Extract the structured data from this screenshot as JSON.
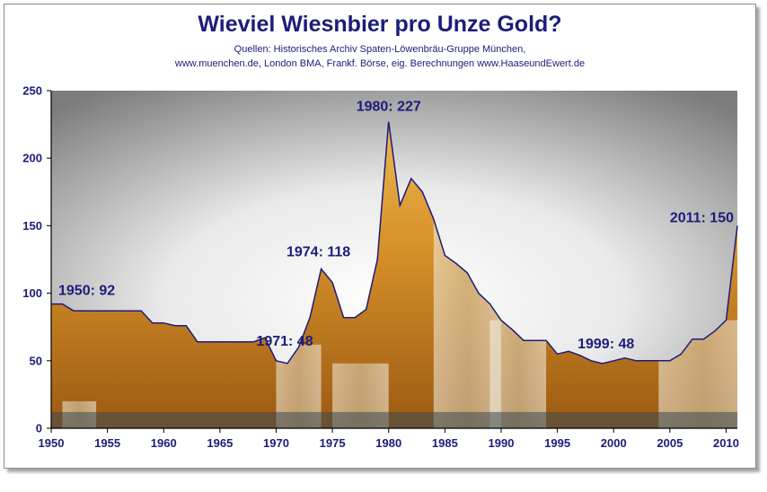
{
  "header": {
    "title": "Wieviel Wiesnbier pro Unze Gold?",
    "source_line1": "Quellen: Historisches Archiv Spaten-Löwenbräu-Gruppe München,",
    "source_line2": "www.muenchen.de, London BMA, Frankf. Börse, eig. Berechnungen www.HaaseundEwert.de"
  },
  "colors": {
    "line": "#1c1c7a",
    "text": "#1c1c7a",
    "beer": "#d89a2a",
    "background_gradient": [
      "#ffffff",
      "#7f7f7f"
    ]
  },
  "chart_data": {
    "type": "area",
    "title": "Wieviel Wiesnbier pro Unze Gold?",
    "xlabel": "",
    "ylabel": "",
    "xlim": [
      1950,
      2011
    ],
    "ylim": [
      0,
      250
    ],
    "grid": false,
    "x_ticks": [
      1950,
      1955,
      1960,
      1965,
      1970,
      1975,
      1980,
      1985,
      1990,
      1995,
      2000,
      2005,
      2010
    ],
    "y_ticks": [
      0,
      50,
      100,
      150,
      200,
      250
    ],
    "series": [
      {
        "x": [
          1950,
          1951,
          1952,
          1953,
          1954,
          1955,
          1956,
          1957,
          1958,
          1959,
          1960,
          1961,
          1962,
          1963,
          1964,
          1965,
          1966,
          1967,
          1968,
          1969,
          1970,
          1971,
          1972,
          1973,
          1974,
          1975,
          1976,
          1977,
          1978,
          1979,
          1980,
          1981,
          1982,
          1983,
          1984,
          1985,
          1986,
          1987,
          1988,
          1989,
          1990,
          1991,
          1992,
          1993,
          1994,
          1995,
          1996,
          1997,
          1998,
          1999,
          2000,
          2001,
          2002,
          2003,
          2004,
          2005,
          2006,
          2007,
          2008,
          2009,
          2010,
          2011
        ],
        "y": [
          92,
          92,
          87,
          87,
          87,
          87,
          87,
          87,
          87,
          78,
          78,
          76,
          76,
          64,
          64,
          64,
          64,
          64,
          64,
          67,
          50,
          48,
          60,
          82,
          118,
          108,
          82,
          82,
          88,
          125,
          227,
          165,
          185,
          175,
          155,
          128,
          122,
          115,
          100,
          92,
          80,
          73,
          65,
          65,
          65,
          55,
          57,
          54,
          50,
          48,
          50,
          52,
          50,
          50,
          50,
          50,
          55,
          66,
          66,
          72,
          80,
          150
        ]
      }
    ],
    "annotations": [
      {
        "label": "1950: 92",
        "x": 1950,
        "y": 92
      },
      {
        "label": "1971: 48",
        "x": 1971,
        "y": 48
      },
      {
        "label": "1974: 118",
        "x": 1974,
        "y": 118
      },
      {
        "label": "1980: 227",
        "x": 1980,
        "y": 227
      },
      {
        "label": "1999: 48",
        "x": 1999,
        "y": 48
      },
      {
        "label": "2011: 150",
        "x": 2011,
        "y": 150
      }
    ]
  }
}
